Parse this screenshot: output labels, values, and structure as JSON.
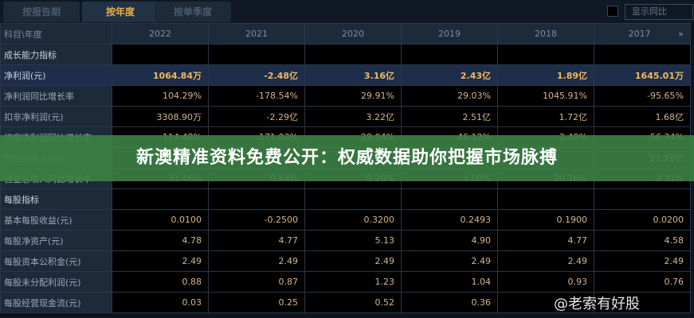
{
  "tabs": [
    "按报告期",
    "按年度",
    "按单季度"
  ],
  "active_tab": 1,
  "yoy_label": "显示同比",
  "header": {
    "label": "科目\\年度",
    "years": [
      "2022",
      "2021",
      "2020",
      "2019",
      "2018",
      "2017"
    ],
    "more": "»"
  },
  "rows": [
    {
      "label": "成长能力指标",
      "type": "sec",
      "values": [
        "",
        "",
        "",
        "",
        "",
        ""
      ]
    },
    {
      "label": "净利润(元)",
      "type": "hl",
      "values": [
        "1064.84万",
        "-2.48亿",
        "3.16亿",
        "2.43亿",
        "1.89亿",
        "1645.01万"
      ]
    },
    {
      "label": "净利润同比增长率",
      "type": "",
      "values": [
        "104.29%",
        "-178.54%",
        "29.91%",
        "29.03%",
        "1045.91%",
        "-95.65%"
      ]
    },
    {
      "label": "扣非净利润(元)",
      "type": "",
      "values": [
        "3308.90万",
        "-2.29亿",
        "3.22亿",
        "2.51亿",
        "1.72亿",
        "1.68亿"
      ]
    },
    {
      "label": "扣非净利润同比增长率",
      "type": "",
      "values": [
        "114.48%",
        "-171.03%",
        "28.04%",
        "46.12%",
        "2.49%",
        "-56.34%"
      ]
    },
    {
      "label": "营业总收入(元)",
      "type": "",
      "values": [
        "",
        "",
        "",
        "",
        "",
        "21.26亿"
      ]
    },
    {
      "label": "营业总收入同比增长率",
      "type": "",
      "values": [
        "53.46%",
        "0.84%",
        "0.26%",
        "4.00%",
        "20.76%",
        "-2.31%"
      ]
    },
    {
      "label": "每股指标",
      "type": "sec",
      "values": [
        "",
        "",
        "",
        "",
        "",
        ""
      ]
    },
    {
      "label": "基本每股收益(元)",
      "type": "",
      "values": [
        "0.0100",
        "-0.2500",
        "0.3200",
        "0.2493",
        "0.1900",
        "0.0200"
      ]
    },
    {
      "label": "每股净资产(元)",
      "type": "",
      "values": [
        "4.78",
        "4.77",
        "5.13",
        "4.90",
        "4.77",
        "4.58"
      ]
    },
    {
      "label": "每股资本公积金(元)",
      "type": "",
      "values": [
        "2.49",
        "2.49",
        "2.49",
        "2.49",
        "2.49",
        "2.49"
      ]
    },
    {
      "label": "每股未分配利润(元)",
      "type": "",
      "values": [
        "0.88",
        "0.87",
        "1.23",
        "1.04",
        "0.93",
        "0.76"
      ]
    },
    {
      "label": "每股经营现金流(元)",
      "type": "",
      "values": [
        "0.03",
        "0.25",
        "0.52",
        "0.36",
        "",
        ""
      ]
    }
  ],
  "banner": "新澳精准资料免费公开：权威数据助你把握市场脉搏",
  "watermark": "@老索有好股"
}
